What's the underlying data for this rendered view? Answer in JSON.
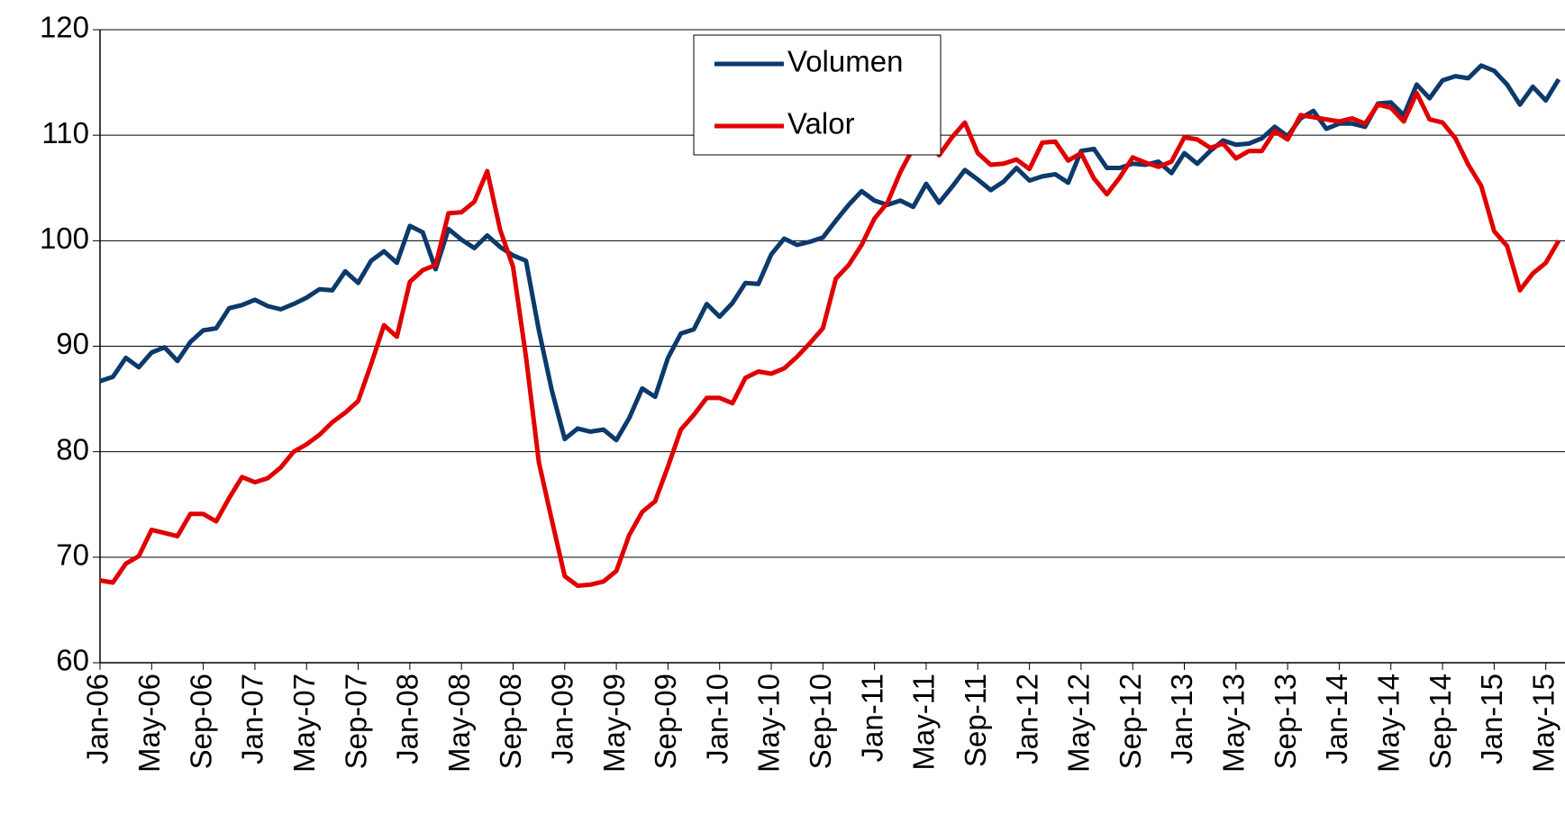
{
  "chart_data": {
    "type": "line",
    "categories": [
      "Jan-06",
      null,
      null,
      null,
      "May-06",
      null,
      null,
      null,
      "Sep-06",
      null,
      null,
      null,
      "Jan-07",
      null,
      null,
      null,
      "May-07",
      null,
      null,
      null,
      "Sep-07",
      null,
      null,
      null,
      "Jan-08",
      null,
      null,
      null,
      "May-08",
      null,
      null,
      null,
      "Sep-08",
      null,
      null,
      null,
      "Jan-09",
      null,
      null,
      null,
      "May-09",
      null,
      null,
      null,
      "Sep-09",
      null,
      null,
      null,
      "Jan-10",
      null,
      null,
      null,
      "May-10",
      null,
      null,
      null,
      "Sep-10",
      null,
      null,
      null,
      "Jan-11",
      null,
      null,
      null,
      "May-11",
      null,
      null,
      null,
      "Sep-11",
      null,
      null,
      null,
      "Jan-12",
      null,
      null,
      null,
      "May-12",
      null,
      null,
      null,
      "Sep-12",
      null,
      null,
      null,
      "Jan-13",
      null,
      null,
      null,
      "May-13",
      null,
      null,
      null,
      "Sep-13",
      null,
      null,
      null,
      "Jan-14",
      null,
      null,
      null,
      "May-14",
      null,
      null,
      null,
      "Sep-14",
      null,
      null,
      null,
      "Jan-15",
      null,
      null,
      null,
      "May-15",
      null
    ],
    "series": [
      {
        "name": "Volumen",
        "color": "#0b3a6b",
        "values": [
          86.7,
          87.1,
          88.9,
          88.0,
          89.4,
          89.9,
          88.6,
          90.4,
          91.5,
          91.7,
          93.6,
          93.9,
          94.4,
          93.8,
          93.5,
          94.0,
          94.6,
          95.4,
          95.3,
          97.1,
          96.0,
          98.1,
          99.0,
          97.9,
          101.4,
          100.8,
          97.3,
          101.1,
          100.1,
          99.3,
          100.5,
          99.4,
          98.6,
          98.1,
          91.5,
          85.8,
          81.2,
          82.2,
          81.9,
          82.1,
          81.1,
          83.2,
          86.0,
          85.2,
          88.9,
          91.2,
          91.6,
          94.0,
          92.8,
          94.1,
          96.0,
          95.9,
          98.7,
          100.2,
          99.6,
          99.9,
          100.3,
          101.9,
          103.4,
          104.7,
          103.8,
          103.4,
          103.8,
          103.2,
          105.4,
          103.6,
          105.1,
          106.7,
          105.8,
          104.8,
          105.6,
          106.9,
          105.7,
          106.1,
          106.3,
          105.5,
          108.5,
          108.7,
          106.9,
          106.9,
          107.3,
          107.2,
          107.5,
          106.4,
          108.3,
          107.3,
          108.5,
          109.5,
          109.1,
          109.2,
          109.7,
          110.8,
          109.9,
          111.6,
          112.3,
          110.6,
          111.1,
          111.1,
          110.8,
          113.0,
          113.1,
          111.9,
          114.8,
          113.5,
          115.2,
          115.6,
          115.4,
          116.6,
          116.1,
          114.8,
          112.9,
          114.6,
          113.3,
          115.3
        ]
      },
      {
        "name": "Valor",
        "color": "#e00000",
        "values": [
          67.8,
          67.6,
          69.4,
          70.1,
          72.6,
          72.3,
          72.0,
          74.1,
          74.1,
          73.4,
          75.6,
          77.6,
          77.1,
          77.5,
          78.5,
          80.0,
          80.7,
          81.6,
          82.8,
          83.7,
          84.8,
          88.3,
          92.0,
          90.9,
          96.1,
          97.2,
          97.7,
          102.6,
          102.7,
          103.7,
          106.6,
          101.0,
          97.5,
          89.0,
          79.0,
          73.5,
          68.2,
          67.3,
          67.4,
          67.7,
          68.7,
          72.1,
          74.3,
          75.3,
          78.6,
          82.1,
          83.5,
          85.1,
          85.1,
          84.6,
          87.0,
          87.6,
          87.4,
          87.9,
          89.0,
          90.3,
          91.7,
          96.4,
          97.7,
          99.6,
          102.1,
          103.6,
          106.5,
          108.8,
          109.8,
          108.1,
          109.8,
          111.2,
          108.3,
          107.2,
          107.3,
          107.7,
          106.8,
          109.3,
          109.4,
          107.6,
          108.3,
          105.9,
          104.4,
          106.0,
          107.9,
          107.4,
          107.0,
          107.5,
          109.8,
          109.6,
          108.8,
          109.2,
          107.8,
          108.5,
          108.5,
          110.4,
          109.6,
          111.9,
          111.7,
          111.5,
          111.3,
          111.6,
          111.1,
          112.9,
          112.6,
          111.3,
          114.0,
          111.5,
          111.2,
          109.7,
          107.2,
          105.2,
          100.9,
          99.5,
          95.3,
          96.9,
          97.9,
          100.0
        ]
      }
    ],
    "ylim": [
      60,
      120
    ],
    "yticks": [
      60,
      70,
      80,
      90,
      100,
      110,
      120
    ],
    "grid": true,
    "legend": "top"
  }
}
